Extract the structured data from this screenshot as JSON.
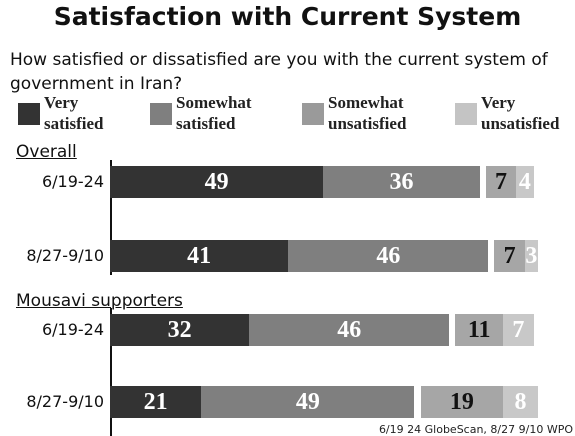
{
  "title": "Satisfaction with Current System",
  "subtitle": "How satisfied or dissatisfied are you with the current system of government in Iran?",
  "source": "6/19 24 GlobeScan, 8/27 9/10 WPO",
  "legend": [
    {
      "line1": "Very",
      "line2": "satisfied",
      "color": "#333333"
    },
    {
      "line1": "Somewhat",
      "line2": "satisfied",
      "color": "#7f7f7f"
    },
    {
      "line1": "Somewhat",
      "line2": "unsatisfied",
      "color": "#9a9a9a"
    },
    {
      "line1": "Very",
      "line2": "unsatisfied",
      "color": "#c4c4c4"
    }
  ],
  "chart_data": {
    "type": "bar",
    "orientation": "horizontal",
    "stacked": true,
    "title": "Satisfaction with Current System",
    "groups": [
      "Overall",
      "Mousavi supporters"
    ],
    "categories": [
      "6/19-24",
      "8/27-9/10",
      "6/19-24",
      "8/27-9/10"
    ],
    "row_group": [
      0,
      0,
      1,
      1
    ],
    "series": [
      {
        "name": "Very satisfied",
        "values": [
          49,
          41,
          32,
          21
        ],
        "color": "#333333"
      },
      {
        "name": "Somewhat satisfied",
        "values": [
          36,
          46,
          46,
          49
        ],
        "color": "#7f7f7f"
      },
      {
        "name": "Somewhat unsatisfied",
        "values": [
          7,
          7,
          11,
          19
        ],
        "color": "#a6a6a6"
      },
      {
        "name": "Very unsatisfied",
        "values": [
          4,
          3,
          7,
          8
        ],
        "color": "#c8c8c8"
      }
    ]
  }
}
